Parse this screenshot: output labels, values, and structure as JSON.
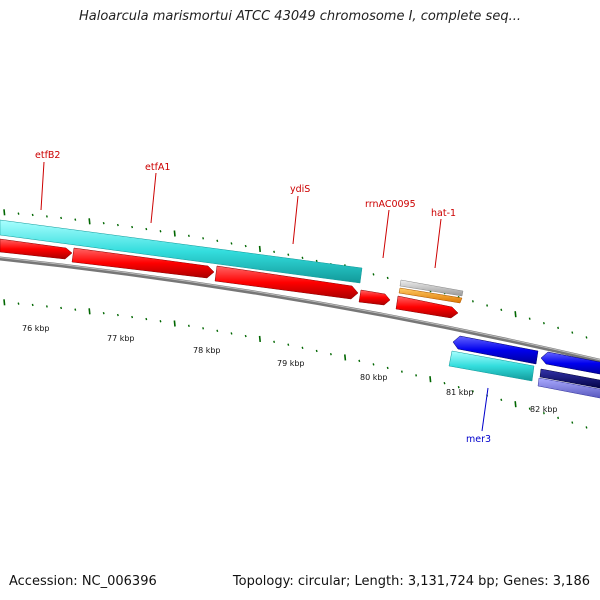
{
  "title": "Haloarcula marismortui ATCC 43049 chromosome I, complete seq...",
  "footer": {
    "accession": "Accession: NC_006396",
    "summary": "Topology: circular; Length: 3,131,724 bp; Genes: 3,186"
  },
  "colors": {
    "forward_gene": "#ff0000",
    "forward_feature": "#33dddd",
    "reverse_gene": "#0000ff",
    "reverse_feature": "#33dddd",
    "label_forward": "#cc0000",
    "label_reverse": "#0000cc",
    "tick": "#006600",
    "backbone": "#888888",
    "rrna_grey": "#bbbbbb",
    "rrna_orange": "#ff9900",
    "dark_navy": "#000066",
    "slate_blue": "#7777dd"
  },
  "gene_labels": [
    {
      "name": "etfB2",
      "strand": "forward"
    },
    {
      "name": "etfA1",
      "strand": "forward"
    },
    {
      "name": "ydiS",
      "strand": "forward"
    },
    {
      "name": "rrnAC0095",
      "strand": "forward"
    },
    {
      "name": "hat-1",
      "strand": "forward"
    },
    {
      "name": "mer3",
      "strand": "reverse"
    }
  ],
  "kbp_ticks": [
    "76 kbp",
    "77 kbp",
    "78 kbp",
    "79 kbp",
    "80 kbp",
    "81 kbp",
    "82 kbp"
  ]
}
